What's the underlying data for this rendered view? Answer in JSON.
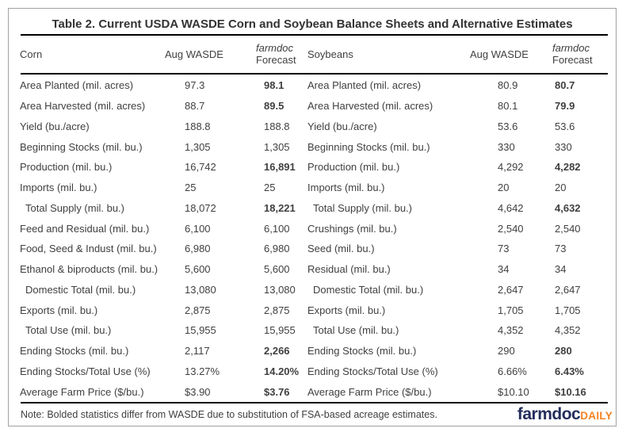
{
  "chart_data": {
    "type": "table",
    "title": "Table 2. Current USDA WASDE Corn and Soybean Balance Sheets and Alternative Estimates",
    "note": "Note: Bolded statistics differ from WASDE due to substitution of FSA-based acreage estimates.",
    "header": {
      "corn": "Corn",
      "soybeans": "Soybeans",
      "aug_wasde": "Aug WASDE",
      "forecast_line1": "farmdoc",
      "forecast_line2": "Forecast"
    },
    "bold_meaning": "Bolded statistics differ from WASDE due to substitution of FSA-based acreage estimates",
    "rows": [
      {
        "corn_label": "Area Planted (mil. acres)",
        "corn_wasde": "97.3",
        "corn_forecast": "98.1",
        "soy_label": "Area Planted (mil. acres)",
        "soy_wasde": "80.9",
        "soy_forecast": "80.7",
        "bold": true,
        "indent": false
      },
      {
        "corn_label": "Area Harvested (mil. acres)",
        "corn_wasde": "88.7",
        "corn_forecast": "89.5",
        "soy_label": "Area Harvested (mil. acres)",
        "soy_wasde": "80.1",
        "soy_forecast": "79.9",
        "bold": true,
        "indent": false
      },
      {
        "corn_label": "Yield (bu./acre)",
        "corn_wasde": "188.8",
        "corn_forecast": "188.8",
        "soy_label": "Yield (bu./acre)",
        "soy_wasde": "53.6",
        "soy_forecast": "53.6",
        "bold": false,
        "indent": false
      },
      {
        "corn_label": "Beginning Stocks (mil. bu.)",
        "corn_wasde": "1,305",
        "corn_forecast": "1,305",
        "soy_label": "Beginning Stocks (mil. bu.)",
        "soy_wasde": "330",
        "soy_forecast": "330",
        "bold": false,
        "indent": false
      },
      {
        "corn_label": "Production (mil. bu.)",
        "corn_wasde": "16,742",
        "corn_forecast": "16,891",
        "soy_label": "Production (mil. bu.)",
        "soy_wasde": "4,292",
        "soy_forecast": "4,282",
        "bold": true,
        "indent": false
      },
      {
        "corn_label": "Imports (mil. bu.)",
        "corn_wasde": "25",
        "corn_forecast": "25",
        "soy_label": "Imports (mil. bu.)",
        "soy_wasde": "20",
        "soy_forecast": "20",
        "bold": false,
        "indent": false
      },
      {
        "corn_label": "Total Supply (mil. bu.)",
        "corn_wasde": "18,072",
        "corn_forecast": "18,221",
        "soy_label": "Total Supply (mil. bu.)",
        "soy_wasde": "4,642",
        "soy_forecast": "4,632",
        "bold": true,
        "indent": true
      },
      {
        "corn_label": "Feed and Residual (mil. bu.)",
        "corn_wasde": "6,100",
        "corn_forecast": "6,100",
        "soy_label": "Crushings (mil. bu.)",
        "soy_wasde": "2,540",
        "soy_forecast": "2,540",
        "bold": false,
        "indent": false
      },
      {
        "corn_label": "Food, Seed & Indust (mil. bu.)",
        "corn_wasde": "6,980",
        "corn_forecast": "6,980",
        "soy_label": "Seed (mil. bu.)",
        "soy_wasde": "73",
        "soy_forecast": "73",
        "bold": false,
        "indent": false
      },
      {
        "corn_label": "Ethanol & biproducts (mil. bu.)",
        "corn_wasde": "5,600",
        "corn_forecast": "5,600",
        "soy_label": "Residual (mil. bu.)",
        "soy_wasde": "34",
        "soy_forecast": "34",
        "bold": false,
        "indent": false
      },
      {
        "corn_label": "Domestic Total (mil. bu.)",
        "corn_wasde": "13,080",
        "corn_forecast": "13,080",
        "soy_label": "Domestic Total (mil. bu.)",
        "soy_wasde": "2,647",
        "soy_forecast": "2,647",
        "bold": false,
        "indent": true
      },
      {
        "corn_label": "Exports (mil. bu.)",
        "corn_wasde": "2,875",
        "corn_forecast": "2,875",
        "soy_label": "Exports (mil. bu.)",
        "soy_wasde": "1,705",
        "soy_forecast": "1,705",
        "bold": false,
        "indent": false
      },
      {
        "corn_label": "Total Use (mil. bu.)",
        "corn_wasde": "15,955",
        "corn_forecast": "15,955",
        "soy_label": "Total Use (mil. bu.)",
        "soy_wasde": "4,352",
        "soy_forecast": "4,352",
        "bold": false,
        "indent": true
      },
      {
        "corn_label": "Ending Stocks (mil. bu.)",
        "corn_wasde": "2,117",
        "corn_forecast": "2,266",
        "soy_label": "Ending Stocks (mil. bu.)",
        "soy_wasde": "290",
        "soy_forecast": "280",
        "bold": true,
        "indent": false
      },
      {
        "corn_label": "Ending Stocks/Total Use (%)",
        "corn_wasde": "13.27%",
        "corn_forecast": "14.20%",
        "soy_label": "Ending Stocks/Total Use (%)",
        "soy_wasde": "6.66%",
        "soy_forecast": "6.43%",
        "bold": true,
        "indent": false
      },
      {
        "corn_label": "Average Farm Price ($/bu.)",
        "corn_wasde": "$3.90",
        "corn_forecast": "$3.76",
        "soy_label": "Average Farm Price ($/bu.)",
        "soy_wasde": "$10.10",
        "soy_forecast": "$10.16",
        "bold": true,
        "indent": false
      }
    ]
  },
  "logo": {
    "brand": "farmdoc",
    "suffix": "DAILY"
  },
  "colors": {
    "body_text": "#404040",
    "title_text": "#333333",
    "rule": "#000000",
    "frame_border": "#a2a2a2",
    "logo_navy": "#242e5c",
    "logo_orange": "#f58220"
  }
}
